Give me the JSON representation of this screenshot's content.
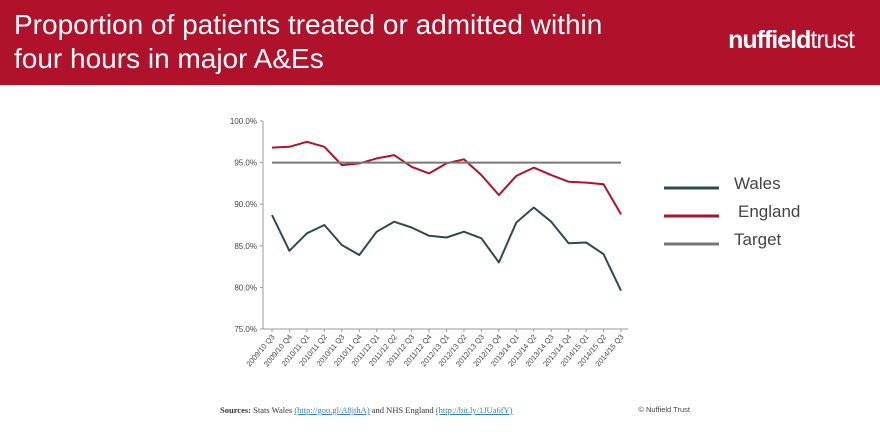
{
  "header": {
    "title": "Proportion of patients treated or admitted within\nfour hours in major A&Es",
    "logo_part1": "nuffield",
    "logo_part2": "trust",
    "background": "#b0122b"
  },
  "footer": {
    "sources_label": "Sources:",
    "stats_wales": "Stats Wales",
    "link1": "(http://goo.gl/A8jthA)",
    "and": "and NHS England",
    "link2": "(http://bit.ly/1JUa6fY)",
    "copyright": "© Nuffield Trust"
  },
  "chart_data": {
    "type": "line",
    "categories": [
      "2009/10 Q3",
      "2009/10 Q4",
      "2010/11 Q1",
      "2010/11 Q2",
      "2010/11 Q3",
      "2010/11 Q4",
      "2011/12 Q1",
      "2011/12 Q2",
      "2011/12 Q3",
      "2011/12 Q4",
      "2012/13 Q1",
      "2012/13 Q2",
      "2012/13 Q3",
      "2012/13 Q4",
      "2013/14 Q1",
      "2013/14 Q2",
      "2013/14 Q3",
      "2013/14 Q4",
      "2014/15 Q1",
      "2014/15 Q2",
      "2014/15 Q3"
    ],
    "series": [
      {
        "name": "Wales",
        "color": "#2e4a4f",
        "values": [
          88.7,
          84.4,
          86.5,
          87.5,
          85.1,
          83.9,
          86.7,
          87.9,
          87.2,
          86.2,
          86.0,
          86.7,
          85.9,
          83.0,
          87.8,
          89.6,
          87.9,
          85.3,
          85.4,
          84.0,
          79.6
        ]
      },
      {
        "name": "England",
        "color": "#b0122b",
        "values": [
          96.8,
          96.9,
          97.5,
          96.9,
          94.7,
          94.9,
          95.5,
          95.9,
          94.5,
          93.7,
          94.9,
          95.4,
          93.5,
          91.1,
          93.4,
          94.4,
          93.5,
          92.7,
          92.6,
          92.4,
          88.8
        ]
      },
      {
        "name": "Target",
        "color": "#777777",
        "values": [
          95,
          95,
          95,
          95,
          95,
          95,
          95,
          95,
          95,
          95,
          95,
          95,
          95,
          95,
          95,
          95,
          95,
          95,
          95,
          95,
          95
        ]
      }
    ],
    "y_ticks": [
      "100.0%",
      "95.0%",
      "90.0%",
      "85.0%",
      "80.0%",
      "75.0%"
    ],
    "ylim": [
      75,
      100
    ],
    "grid": false,
    "legend_position": "right"
  }
}
